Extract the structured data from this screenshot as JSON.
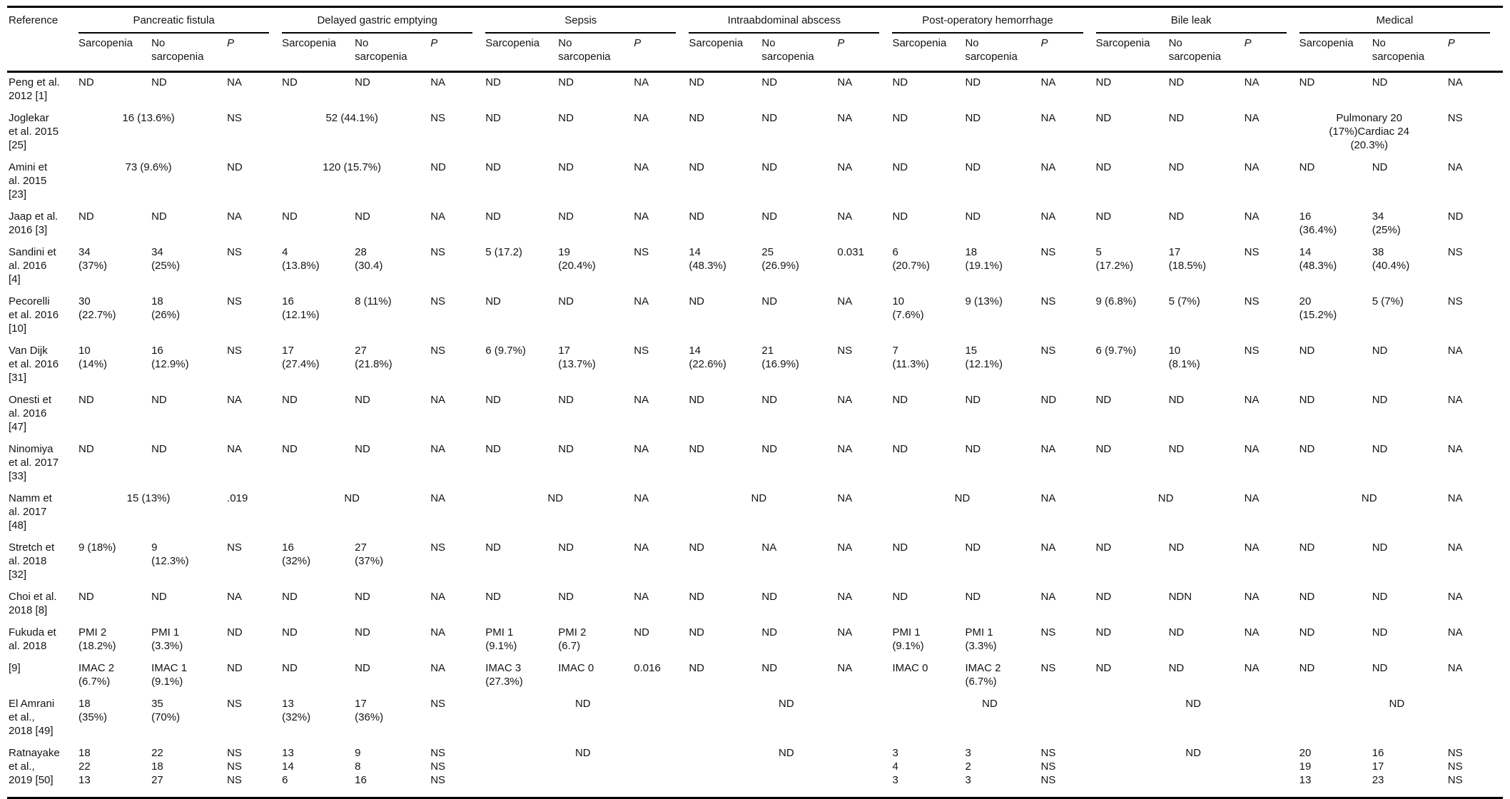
{
  "table": {
    "reference_header": "Reference",
    "groups": [
      {
        "label": "Pancreatic fistula"
      },
      {
        "label": "Delayed gastric emptying"
      },
      {
        "label": "Sepsis"
      },
      {
        "label": "Intraabdominal abscess"
      },
      {
        "label": "Post-operatory hemorrhage"
      },
      {
        "label": "Bile leak"
      },
      {
        "label": "Medical"
      }
    ],
    "subheaders": [
      "Sarcopenia",
      "No sarcopenia",
      "P"
    ],
    "rows": [
      {
        "reference": "Peng et al.\n2012 [1]",
        "cells": [
          [
            "ND",
            "ND",
            "NA"
          ],
          [
            "ND",
            "ND",
            "NA"
          ],
          [
            "ND",
            "ND",
            "NA"
          ],
          [
            "ND",
            "ND",
            "NA"
          ],
          [
            "ND",
            "ND",
            "NA"
          ],
          [
            "ND",
            "ND",
            "NA"
          ],
          [
            "ND",
            "ND",
            "NA"
          ]
        ]
      },
      {
        "reference": "Joglekar\net al. 2015\n[25]",
        "cells": [
          {
            "span2": "16 (13.6%)",
            "p": "NS"
          },
          {
            "span2": "52 (44.1%)",
            "p": "NS"
          },
          [
            "ND",
            "ND",
            "NA"
          ],
          [
            "ND",
            "ND",
            "NA"
          ],
          [
            "ND",
            "ND",
            "NA"
          ],
          [
            "ND",
            "ND",
            "NA"
          ],
          {
            "span2": "Pulmonary 20\n(17%)Cardiac 24\n(20.3%)",
            "p": "NS"
          }
        ]
      },
      {
        "reference": "Amini et\nal. 2015\n[23]",
        "cells": [
          {
            "span2": "73 (9.6%)",
            "p": "ND"
          },
          {
            "span2": "120 (15.7%)",
            "p": "ND"
          },
          [
            "ND",
            "ND",
            "NA"
          ],
          [
            "ND",
            "ND",
            "NA"
          ],
          [
            "ND",
            "ND",
            "NA"
          ],
          [
            "ND",
            "ND",
            "NA"
          ],
          [
            "ND",
            "ND",
            "NA"
          ]
        ]
      },
      {
        "reference": "Jaap et al.\n2016 [3]",
        "cells": [
          [
            "ND",
            "ND",
            "NA"
          ],
          [
            "ND",
            "ND",
            "NA"
          ],
          [
            "ND",
            "ND",
            "NA"
          ],
          [
            "ND",
            "ND",
            "NA"
          ],
          [
            "ND",
            "ND",
            "NA"
          ],
          [
            "ND",
            "ND",
            "NA"
          ],
          [
            "16\n(36.4%)",
            "34\n(25%)",
            "ND"
          ]
        ]
      },
      {
        "reference": "Sandini et\nal. 2016\n[4]",
        "cells": [
          [
            "34\n(37%)",
            "34\n(25%)",
            "NS"
          ],
          [
            "4\n(13.8%)",
            "28\n(30.4)",
            "NS"
          ],
          [
            "5 (17.2)",
            "19\n(20.4%)",
            "NS"
          ],
          [
            "14\n(48.3%)",
            "25\n(26.9%)",
            "0.031"
          ],
          [
            "6\n(20.7%)",
            "18\n(19.1%)",
            "NS"
          ],
          [
            "5\n(17.2%)",
            "17\n(18.5%)",
            "NS"
          ],
          [
            "14\n(48.3%)",
            "38\n(40.4%)",
            "NS"
          ]
        ]
      },
      {
        "reference": "Pecorelli\net al. 2016\n[10]",
        "cells": [
          [
            "30\n(22.7%)",
            "18\n(26%)",
            "NS"
          ],
          [
            "16\n(12.1%)",
            "8 (11%)",
            "NS"
          ],
          [
            "ND",
            "ND",
            "NA"
          ],
          [
            "ND",
            "ND",
            "NA"
          ],
          [
            "10\n(7.6%)",
            "9 (13%)",
            "NS"
          ],
          [
            "9 (6.8%)",
            "5 (7%)",
            "NS"
          ],
          [
            "20\n(15.2%)",
            "5 (7%)",
            "NS"
          ]
        ]
      },
      {
        "reference": "Van Dijk\net al. 2016\n[31]",
        "cells": [
          [
            "10\n(14%)",
            "16\n(12.9%)",
            "NS"
          ],
          [
            "17\n(27.4%)",
            "27\n(21.8%)",
            "NS"
          ],
          [
            "6 (9.7%)",
            "17\n(13.7%)",
            "NS"
          ],
          [
            "14\n(22.6%)",
            "21\n(16.9%)",
            "NS"
          ],
          [
            "7\n(11.3%)",
            "15\n(12.1%)",
            "NS"
          ],
          [
            "6 (9.7%)",
            "10\n(8.1%)",
            "NS"
          ],
          [
            "ND",
            "ND",
            "NA"
          ]
        ]
      },
      {
        "reference": "Onesti et\nal. 2016\n[47]",
        "cells": [
          [
            "ND",
            "ND",
            "NA"
          ],
          [
            "ND",
            "ND",
            "NA"
          ],
          [
            "ND",
            "ND",
            "NA"
          ],
          [
            "ND",
            "ND",
            "NA"
          ],
          [
            "ND",
            "ND",
            "ND"
          ],
          [
            "ND",
            "ND",
            "NA"
          ],
          [
            "ND",
            "ND",
            "NA"
          ]
        ]
      },
      {
        "reference": "Ninomiya\net al. 2017\n[33]",
        "cells": [
          [
            "ND",
            "ND",
            "NA"
          ],
          [
            "ND",
            "ND",
            "NA"
          ],
          [
            "ND",
            "ND",
            "NA"
          ],
          [
            "ND",
            "ND",
            "NA"
          ],
          [
            "ND",
            "ND",
            "NA"
          ],
          [
            "ND",
            "ND",
            "NA"
          ],
          [
            "ND",
            "ND",
            "NA"
          ]
        ]
      },
      {
        "reference": "Namm et\nal. 2017\n[48]",
        "cells": [
          {
            "span2": "15 (13%)",
            "p": ".019"
          },
          {
            "span2": "ND",
            "p": "NA"
          },
          {
            "span2": "ND",
            "p": "NA"
          },
          {
            "span2": "ND",
            "p": "NA"
          },
          {
            "span2": "ND",
            "p": "NA"
          },
          {
            "span2": "ND",
            "p": "NA"
          },
          {
            "span2": "ND",
            "p": "NA"
          }
        ]
      },
      {
        "reference": "Stretch et\nal. 2018\n[32]",
        "cells": [
          [
            "9 (18%)",
            "9\n(12.3%)",
            "NS"
          ],
          [
            "16\n(32%)",
            "27\n(37%)",
            "NS"
          ],
          [
            "ND",
            "ND",
            "NA"
          ],
          [
            "ND",
            "NA",
            "NA"
          ],
          [
            "ND",
            "ND",
            "NA"
          ],
          [
            "ND",
            "ND",
            "NA"
          ],
          [
            "ND",
            "ND",
            "NA"
          ]
        ]
      },
      {
        "reference": "Choi et al.\n2018 [8]",
        "cells": [
          [
            "ND",
            "ND",
            "NA"
          ],
          [
            "ND",
            "ND",
            "NA"
          ],
          [
            "ND",
            "ND",
            "NA"
          ],
          [
            "ND",
            "ND",
            "NA"
          ],
          [
            "ND",
            "ND",
            "NA"
          ],
          [
            "ND",
            "NDN",
            "NA"
          ],
          [
            "ND",
            "ND",
            "NA"
          ]
        ]
      },
      {
        "reference": "Fukuda et\nal. 2018",
        "cells": [
          [
            "PMI 2\n(18.2%)",
            "PMI 1\n(3.3%)",
            "ND"
          ],
          [
            "ND",
            "ND",
            "NA"
          ],
          [
            "PMI 1\n(9.1%)",
            "PMI 2\n(6.7)",
            "ND"
          ],
          [
            "ND",
            "ND",
            "NA"
          ],
          [
            "PMI 1\n(9.1%)",
            "PMI 1\n(3.3%)",
            "NS"
          ],
          [
            "ND",
            "ND",
            "NA"
          ],
          [
            "ND",
            "ND",
            "NA"
          ]
        ]
      },
      {
        "reference": "[9]",
        "cells": [
          [
            "IMAC 2\n(6.7%)",
            "IMAC 1\n(9.1%)",
            "ND"
          ],
          [
            "ND",
            "ND",
            "NA"
          ],
          [
            "IMAC 3\n(27.3%)",
            "IMAC 0",
            "0.016"
          ],
          [
            "ND",
            "ND",
            "NA"
          ],
          [
            "IMAC 0",
            "IMAC 2\n(6.7%)",
            "NS"
          ],
          [
            "ND",
            "ND",
            "NA"
          ],
          [
            "ND",
            "ND",
            "NA"
          ]
        ]
      },
      {
        "reference": "El Amrani\net al.,\n2018 [49]",
        "cells": [
          [
            "18\n(35%)",
            "35\n(70%)",
            "NS"
          ],
          [
            "13\n(32%)",
            "17\n(36%)",
            "NS"
          ],
          {
            "span3": "ND"
          },
          {
            "span3": "ND"
          },
          {
            "span3": "ND"
          },
          {
            "span3": "ND"
          },
          {
            "span3": "ND"
          }
        ]
      },
      {
        "reference": "Ratnayake\net al.,\n2019 [50]",
        "cells": [
          [
            "18\n22\n13",
            "22\n18\n27",
            "NS\nNS\nNS"
          ],
          [
            "13\n14\n6",
            "9\n8\n16",
            "NS\nNS\nNS"
          ],
          {
            "span3": "ND"
          },
          {
            "span3": "ND"
          },
          [
            "3\n4\n3",
            "3\n2\n3",
            "NS\nNS\nNS"
          ],
          {
            "span3": "ND"
          },
          [
            "20\n19\n13",
            "16\n17\n23",
            "NS\nNS\nNS"
          ]
        ]
      }
    ]
  }
}
